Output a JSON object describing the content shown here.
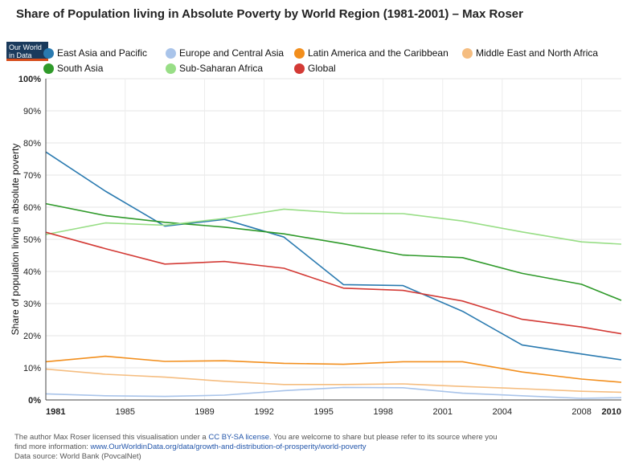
{
  "chart_data": {
    "type": "line",
    "title": "Share of Population living in Absolute Poverty by World Region (1981-2001) – Max Roser",
    "ylabel": "Share of population living in absolute poverty",
    "xlabel": "",
    "xlim": [
      1981,
      2010
    ],
    "ylim": [
      0,
      100
    ],
    "x_ticks": [
      "1981",
      "1985",
      "1989",
      "1992",
      "1995",
      "1998",
      "2001",
      "2004",
      "2008",
      "2010"
    ],
    "x_tick_values": [
      1981,
      1985,
      1989,
      1992,
      1995,
      1998,
      2001,
      2004,
      2008,
      2010
    ],
    "y_ticks": [
      "0%",
      "10%",
      "20%",
      "30%",
      "40%",
      "50%",
      "60%",
      "70%",
      "80%",
      "90%",
      "100%"
    ],
    "x": [
      1981,
      1984,
      1987,
      1990,
      1993,
      1996,
      1999,
      2002,
      2005,
      2008,
      2010
    ],
    "series": [
      {
        "name": "East Asia and Pacific",
        "color": "#2a7ab0",
        "values": [
          77.2,
          65.0,
          54.1,
          56.2,
          50.7,
          35.9,
          35.6,
          27.6,
          17.1,
          14.3,
          12.5
        ]
      },
      {
        "name": "Europe and Central Asia",
        "color": "#a9c4ea",
        "values": [
          1.9,
          1.3,
          1.1,
          1.5,
          2.9,
          3.9,
          3.8,
          2.1,
          1.3,
          0.5,
          0.7
        ]
      },
      {
        "name": "Latin America and the Caribbean",
        "color": "#f28e1c",
        "values": [
          11.9,
          13.6,
          12.0,
          12.2,
          11.4,
          11.1,
          11.9,
          11.9,
          8.7,
          6.5,
          5.5
        ]
      },
      {
        "name": "Middle East and North Africa",
        "color": "#f5bd80",
        "values": [
          9.6,
          8.0,
          7.1,
          5.8,
          4.8,
          4.8,
          5.0,
          4.2,
          3.5,
          2.7,
          2.4
        ]
      },
      {
        "name": "South Asia",
        "color": "#2f9a2a",
        "values": [
          61.1,
          57.4,
          55.3,
          53.8,
          51.7,
          48.6,
          45.1,
          44.3,
          39.4,
          36.0,
          31.0
        ]
      },
      {
        "name": "Sub-Saharan Africa",
        "color": "#98de86",
        "values": [
          51.5,
          55.1,
          54.4,
          56.5,
          59.4,
          58.1,
          58.0,
          55.7,
          52.3,
          49.2,
          48.5
        ]
      },
      {
        "name": "Global",
        "color": "#d33a35",
        "values": [
          52.2,
          47.1,
          42.3,
          43.1,
          41.0,
          34.8,
          34.1,
          30.8,
          25.1,
          22.7,
          20.6
        ]
      }
    ]
  },
  "logo": {
    "line1": "Our World",
    "line2": "in Data"
  },
  "footer": {
    "line1_a": "The author Max Roser licensed this visualisation under a ",
    "license": "CC BY-SA license",
    "line1_b": ". You are welcome to share but please refer to its source where you",
    "line2_a": "find more information: ",
    "url": "www.OurWorldinData.org/data/growth-and-distribution-of-prosperity/world-poverty",
    "line3": "Data source: World Bank (PovcalNet)"
  }
}
